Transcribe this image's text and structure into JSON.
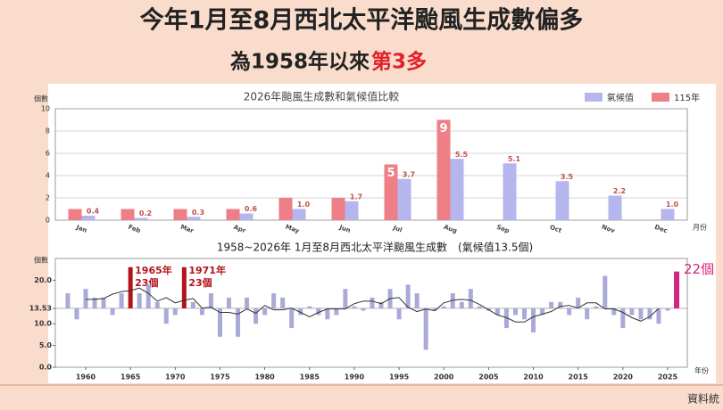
{
  "header": {
    "title": "今年1月至8月西北太平洋颱風生成數偏多",
    "subtitle": "為1958年以來",
    "subtitle_highlight": "第3多"
  },
  "footer": "資料統",
  "chart_data": [
    {
      "type": "bar",
      "title": "2026年颱風生成數和氣候值比較",
      "y_label": "個數",
      "x_label": "月份",
      "categories": [
        "Jan",
        "Feb",
        "Mar",
        "Apr",
        "May",
        "Jun",
        "Jul",
        "Aug",
        "Sep",
        "Oct",
        "Nov",
        "Dec"
      ],
      "series": [
        {
          "name": "115年",
          "color": "#ee7f86",
          "values": [
            1,
            1,
            1,
            1,
            2,
            2,
            5,
            9,
            null,
            null,
            null,
            null
          ],
          "value_labels": [
            null,
            null,
            null,
            null,
            null,
            null,
            "5",
            "9",
            null,
            null,
            null,
            null
          ]
        },
        {
          "name": "氣候值",
          "color": "#b6b6ee",
          "values": [
            0.4,
            0.2,
            0.3,
            0.6,
            1.0,
            1.7,
            3.7,
            5.5,
            5.1,
            3.5,
            2.2,
            1.0
          ],
          "value_labels": [
            "0.4",
            "0.2",
            "0.3",
            "0.6",
            "1.0",
            "1.7",
            "3.7",
            "5.5",
            "5.1",
            "3.5",
            "2.2",
            "1.0"
          ]
        }
      ],
      "ylim": [
        0,
        10
      ],
      "yticks": [
        0,
        2,
        4,
        6,
        8,
        10
      ],
      "grid": true,
      "legend": "top-right"
    },
    {
      "type": "deviation",
      "title": "1958~2026年 1月至8月西北太平洋颱風生成數　(氣候值13.5個)",
      "y_label": "個數",
      "x_label": "年份",
      "x": [
        1958,
        1959,
        1960,
        1961,
        1962,
        1963,
        1964,
        1965,
        1966,
        1967,
        1968,
        1969,
        1970,
        1971,
        1972,
        1973,
        1974,
        1975,
        1976,
        1977,
        1978,
        1979,
        1980,
        1981,
        1982,
        1983,
        1984,
        1985,
        1986,
        1987,
        1988,
        1989,
        1990,
        1991,
        1992,
        1993,
        1994,
        1995,
        1996,
        1997,
        1998,
        1999,
        2000,
        2001,
        2002,
        2003,
        2004,
        2005,
        2006,
        2007,
        2008,
        2009,
        2010,
        2011,
        2012,
        2013,
        2014,
        2015,
        2016,
        2017,
        2018,
        2019,
        2020,
        2021,
        2022,
        2023,
        2024,
        2025
      ],
      "values": [
        17,
        11,
        18,
        16,
        16,
        12,
        17,
        23,
        17,
        19,
        15,
        10,
        12,
        23,
        15,
        12,
        17,
        7,
        16,
        7,
        16,
        10,
        12,
        17,
        16,
        9,
        12,
        14,
        12,
        11,
        12,
        18,
        14,
        13,
        16,
        15,
        18,
        11,
        19,
        17,
        4,
        13,
        14,
        17,
        15,
        18,
        14,
        13,
        12,
        9,
        12,
        11,
        8,
        12,
        15,
        15,
        12,
        16,
        11,
        14,
        21,
        12,
        9,
        12,
        11,
        11,
        10,
        13
      ],
      "line_values": [
        null,
        null,
        15.6,
        15.6,
        15.8,
        16.8,
        17.4,
        17.6,
        18.2,
        17.0,
        15.2,
        16.0,
        14.8,
        15.4,
        15.8,
        13.6,
        13.8,
        12.6,
        12.6,
        12.2,
        13.4,
        12.4,
        14.2,
        13.2,
        13.2,
        13.6,
        12.6,
        11.6,
        12.6,
        13.4,
        13.4,
        13.4,
        14.6,
        15.2,
        15.2,
        14.6,
        15.8,
        16.0,
        13.8,
        12.8,
        13.4,
        13.0,
        14.8,
        15.4,
        15.6,
        15.4,
        14.4,
        13.2,
        12.0,
        11.4,
        10.4,
        10.4,
        11.6,
        12.2,
        12.8,
        14.0,
        14.2,
        13.6,
        14.8,
        14.8,
        13.4,
        13.4,
        12.6,
        11.4,
        10.6,
        11.6,
        13.5,
        null
      ],
      "color": "#aaaad8",
      "line_color": "#333333",
      "baseline": 13.53,
      "highlights": [
        {
          "x": 1965,
          "year_label": "1965年",
          "count_label": "23個",
          "color": "#b3141c"
        },
        {
          "x": 1971,
          "year_label": "1971年",
          "count_label": "23個",
          "color": "#b3141c"
        }
      ],
      "current": {
        "x": 2026,
        "value": 22,
        "label": "22個",
        "color": "#d6247e"
      },
      "xlim": [
        1956,
        2028
      ],
      "xticks": [
        1960,
        1965,
        1970,
        1975,
        1980,
        1985,
        1990,
        1995,
        2000,
        2005,
        2010,
        2015,
        2020,
        2025
      ],
      "ylim": [
        0,
        25
      ],
      "yticks": [
        {
          "value": 0,
          "label": "0.0"
        },
        {
          "value": 5,
          "label": "5.0"
        },
        {
          "value": 10,
          "label": "10.0"
        },
        {
          "value": 13.53,
          "label": "13.53"
        },
        {
          "value": 20,
          "label": "20.0"
        }
      ]
    }
  ]
}
